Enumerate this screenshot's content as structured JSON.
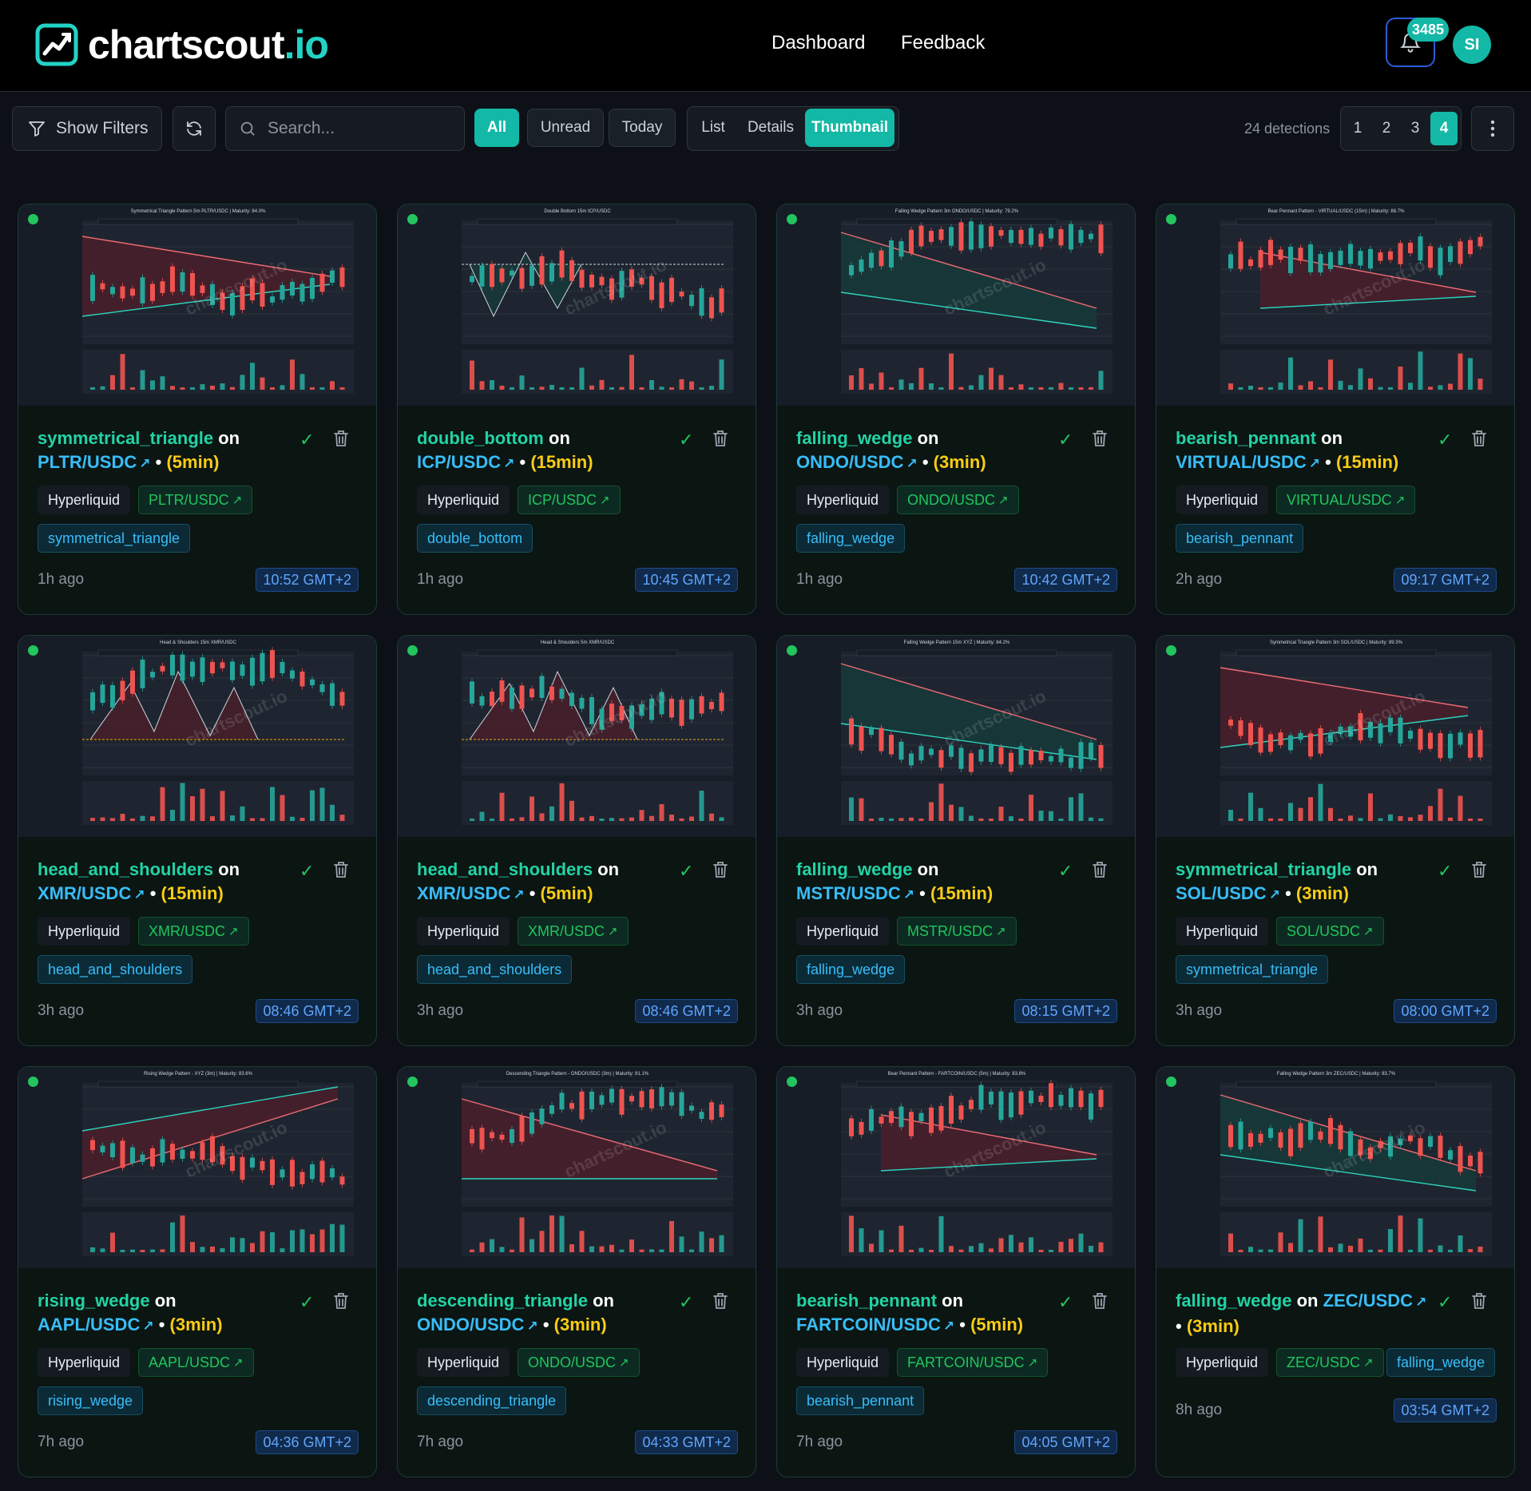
{
  "brand": {
    "name": "chartscout",
    "tld": ".io"
  },
  "nav": {
    "dashboard": "Dashboard",
    "feedback": "Feedback"
  },
  "notifications": {
    "count": "3485"
  },
  "user": {
    "initials": "SI"
  },
  "toolbar": {
    "filters_label": "Show Filters",
    "search_placeholder": "Search...",
    "filter_all": "All",
    "filter_unread": "Unread",
    "filter_today": "Today",
    "view_list": "List",
    "view_details": "Details",
    "view_thumbnail": "Thumbnail",
    "detections": "24 detections",
    "pages": [
      "1",
      "2",
      "3",
      "4"
    ],
    "active_page": "4"
  },
  "cards": [
    {
      "pattern": "symmetrical_triangle",
      "on": "on",
      "pair": "PLTR/USDC",
      "sep": "•",
      "tf": "(5min)",
      "exchange": "Hyperliquid",
      "ago": "1h ago",
      "time": "10:52 GMT+2",
      "chart_title": "Symmetrical Triangle Pattern 5m PLTR/USDC | Maturity: 84.0%"
    },
    {
      "pattern": "double_bottom",
      "on": "on",
      "pair": "ICP/USDC",
      "sep": "•",
      "tf": "(15min)",
      "exchange": "Hyperliquid",
      "ago": "1h ago",
      "time": "10:45 GMT+2",
      "chart_title": "Double Bottom 15m ICP/USDC"
    },
    {
      "pattern": "falling_wedge",
      "on": "on",
      "pair": "ONDO/USDC",
      "sep": "•",
      "tf": "(3min)",
      "exchange": "Hyperliquid",
      "ago": "1h ago",
      "time": "10:42 GMT+2",
      "chart_title": "Falling Wedge Pattern 3m ONDO/USDC | Maturity: 79.2%"
    },
    {
      "pattern": "bearish_pennant",
      "on": "on",
      "pair": "VIRTUAL/USDC",
      "sep": "•",
      "tf": "(15min)",
      "exchange": "Hyperliquid",
      "ago": "2h ago",
      "time": "09:17 GMT+2",
      "chart_title": "Bear Pennant Pattern - VIRTUAL/USDC (15m) | Maturity: 88.7%"
    },
    {
      "pattern": "head_and_shoulders",
      "on": "on",
      "pair": "XMR/USDC",
      "sep": "•",
      "tf": "(15min)",
      "exchange": "Hyperliquid",
      "ago": "3h ago",
      "time": "08:46 GMT+2",
      "chart_title": "Head & Shoulders 15m XMR/USDC"
    },
    {
      "pattern": "head_and_shoulders",
      "on": "on",
      "pair": "XMR/USDC",
      "sep": "•",
      "tf": "(5min)",
      "exchange": "Hyperliquid",
      "ago": "3h ago",
      "time": "08:46 GMT+2",
      "chart_title": "Head & Shoulders 5m XMR/USDC"
    },
    {
      "pattern": "falling_wedge",
      "on": "on",
      "pair": "MSTR/USDC",
      "sep": "•",
      "tf": "(15min)",
      "exchange": "Hyperliquid",
      "ago": "3h ago",
      "time": "08:15 GMT+2",
      "chart_title": "Falling Wedge Pattern 15m XYZ | Maturity: 84.2%"
    },
    {
      "pattern": "symmetrical_triangle",
      "on": "on",
      "pair": "SOL/USDC",
      "sep": "•",
      "tf": "(3min)",
      "exchange": "Hyperliquid",
      "ago": "3h ago",
      "time": "08:00 GMT+2",
      "chart_title": "Symmetrical Triangle Pattern 3m SOL/USDC | Maturity: 89.3%"
    },
    {
      "pattern": "rising_wedge",
      "on": "on",
      "pair": "AAPL/USDC",
      "sep": "•",
      "tf": "(3min)",
      "exchange": "Hyperliquid",
      "ago": "7h ago",
      "time": "04:36 GMT+2",
      "chart_title": "Rising Wedge Pattern - XYZ (3m) | Maturity: 83.6%"
    },
    {
      "pattern": "descending_triangle",
      "on": "on",
      "pair": "ONDO/USDC",
      "sep": "•",
      "tf": "(3min)",
      "exchange": "Hyperliquid",
      "ago": "7h ago",
      "time": "04:33 GMT+2",
      "chart_title": "Descending Triangle Pattern - ONDO/USDC (3m) | Maturity: 81.1%"
    },
    {
      "pattern": "bearish_pennant",
      "on": "on",
      "pair": "FARTCOIN/USDC",
      "sep": "•",
      "tf": "(5min)",
      "exchange": "Hyperliquid",
      "ago": "7h ago",
      "time": "04:05 GMT+2",
      "chart_title": "Bear Pennant Pattern - FARTCOIN/USDC (5m) | Maturity: 83.8%"
    },
    {
      "pattern": "falling_wedge",
      "on": "on",
      "pair": "ZEC/USDC",
      "sep": "•",
      "tf": "(3min)",
      "exchange": "Hyperliquid",
      "ago": "8h ago",
      "time": "03:54 GMT+2",
      "chart_title": "Falling Wedge Pattern 3m ZEC/USDC | Maturity: 83.7%"
    }
  ],
  "colors": {
    "accent": "#14b8a6",
    "pattern": "#22d3a5",
    "ticker": "#38bdf8",
    "timeframe": "#facc15",
    "bull": "#26a69a",
    "bear": "#ef5350"
  },
  "icons": {
    "filter": "filter-icon",
    "refresh": "refresh-icon",
    "search": "search-icon",
    "bell": "bell-icon",
    "check": "check-icon",
    "trash": "trash-icon",
    "external": "external-link-icon",
    "more": "more-vertical-icon"
  }
}
